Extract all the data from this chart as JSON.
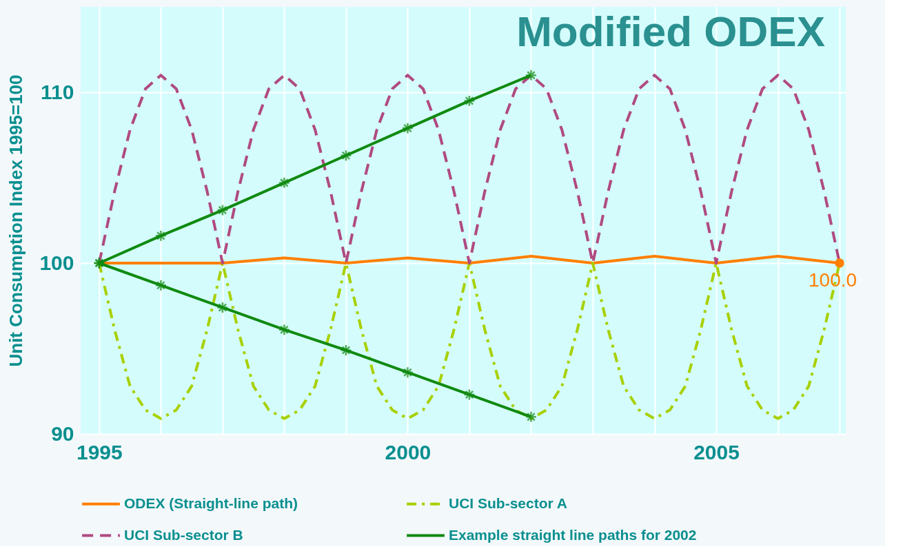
{
  "chart_data": {
    "type": "line",
    "title": "Modified ODEX",
    "ylabel": "Unit Consumption Index 1995=100",
    "xlim": [
      1994.7,
      2007.1
    ],
    "ylim": [
      90,
      115
    ],
    "xticks": [
      1995,
      {
        "value": 1996,
        "label": null
      },
      {
        "value": 1997,
        "label": null
      },
      {
        "value": 1998,
        "label": null
      },
      {
        "value": 1999,
        "label": null
      },
      2000,
      {
        "value": 2001,
        "label": null
      },
      {
        "value": 2002,
        "label": null
      },
      {
        "value": 2003,
        "label": null
      },
      {
        "value": 2004,
        "label": null
      },
      2005,
      {
        "value": 2006,
        "label": null
      },
      {
        "value": 2007,
        "label": null
      }
    ],
    "yticks": [
      90,
      100,
      110
    ],
    "grid": true,
    "legend": "bottom",
    "series": [
      {
        "name": "ODEX (Straight-line path)",
        "color": "#ff7f00",
        "line_style": "solid",
        "marker": "none",
        "x": [
          1995,
          1996,
          1997,
          1998,
          1999,
          2000,
          2001,
          2002,
          2003,
          2004,
          2005,
          2006,
          2007
        ],
        "values": [
          100,
          100,
          100,
          100.3,
          100,
          100.3,
          100,
          100.4,
          100,
          100.4,
          100,
          100.4,
          100
        ],
        "value_labels": [
          null,
          null,
          null,
          null,
          null,
          null,
          null,
          null,
          null,
          null,
          null,
          null,
          "100.0"
        ]
      },
      {
        "name": "UCI Sub-sector A",
        "color": "#a8d000",
        "line_style": "dashdot",
        "marker": "none",
        "x": [
          1995,
          1995.25,
          1995.5,
          1995.75,
          1996,
          1996.25,
          1996.5,
          1996.75,
          1997,
          1997.25,
          1997.5,
          1997.75,
          1998,
          1998.25,
          1998.5,
          1998.75,
          1999,
          1999.25,
          1999.5,
          1999.75,
          2000,
          2000.25,
          2000.5,
          2000.75,
          2001,
          2001.25,
          2001.5,
          2001.75,
          2002,
          2002.25,
          2002.5,
          2002.75,
          2003,
          2003.25,
          2003.5,
          2003.75,
          2004,
          2004.25,
          2004.5,
          2004.75,
          2005,
          2005.25,
          2005.5,
          2005.75,
          2006,
          2006.25,
          2006.5,
          2006.75,
          2007
        ],
        "values": [
          100,
          96.1,
          92.8,
          91.4,
          90.9,
          91.4,
          92.8,
          96.1,
          100,
          96.1,
          92.8,
          91.4,
          90.9,
          91.4,
          92.8,
          96.1,
          100,
          96.1,
          92.8,
          91.4,
          90.9,
          91.4,
          92.8,
          96.1,
          100,
          96.1,
          92.8,
          91.4,
          90.9,
          91.4,
          92.8,
          96.1,
          100,
          96.1,
          92.8,
          91.4,
          90.9,
          91.4,
          92.8,
          96.1,
          100,
          96.1,
          92.8,
          91.4,
          90.9,
          91.4,
          92.8,
          96.1,
          100
        ]
      },
      {
        "name": "UCI Sub-sector B",
        "color": "#b04a80",
        "line_style": "dashed",
        "marker": "none",
        "x": [
          1995,
          1995.25,
          1995.5,
          1995.75,
          1996,
          1996.25,
          1996.5,
          1996.75,
          1997,
          1997.25,
          1997.5,
          1997.75,
          1998,
          1998.25,
          1998.5,
          1998.75,
          1999,
          1999.25,
          1999.5,
          1999.75,
          2000,
          2000.25,
          2000.5,
          2000.75,
          2001,
          2001.25,
          2001.5,
          2001.75,
          2002,
          2002.25,
          2002.5,
          2002.75,
          2003,
          2003.25,
          2003.5,
          2003.75,
          2004,
          2004.25,
          2004.5,
          2004.75,
          2005,
          2005.25,
          2005.5,
          2005.75,
          2006,
          2006.25,
          2006.5,
          2006.75,
          2007
        ],
        "values": [
          100,
          104.2,
          107.8,
          110.2,
          111,
          110.2,
          107.8,
          104.2,
          100,
          104.2,
          107.8,
          110.2,
          111,
          110.2,
          107.8,
          104.2,
          100,
          104.2,
          107.8,
          110.2,
          111,
          110.2,
          107.8,
          104.2,
          100,
          104.2,
          107.8,
          110.2,
          111,
          110.2,
          107.8,
          104.2,
          100,
          104.2,
          107.8,
          110.2,
          111,
          110.2,
          107.8,
          104.2,
          100,
          104.2,
          107.8,
          110.2,
          111,
          110.2,
          107.8,
          104.2,
          100
        ]
      },
      {
        "name": "Example straight line paths for 2002",
        "color": "#108a10",
        "line_style": "solid",
        "marker": "cross",
        "x": [
          1995,
          1996,
          1997,
          1998,
          1999,
          2000,
          2001,
          2002
        ],
        "values": [
          100,
          101.6,
          103.1,
          104.7,
          106.3,
          107.9,
          109.5,
          111
        ]
      },
      {
        "color": "#108a10",
        "line_style": "solid",
        "marker": "cross",
        "x": [
          1995,
          1996,
          1997,
          1998,
          1999,
          2000,
          2001,
          2002
        ],
        "values": [
          100,
          98.7,
          97.4,
          96.1,
          94.9,
          93.6,
          92.3,
          91
        ]
      }
    ]
  }
}
